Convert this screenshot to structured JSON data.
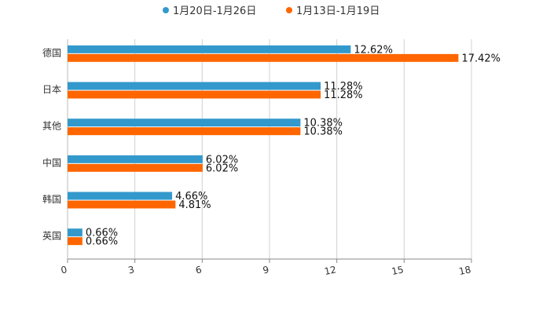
{
  "chart_data": {
    "type": "bar",
    "orientation": "horizontal",
    "categories": [
      "德国",
      "日本",
      "其他",
      "中国",
      "韩国",
      "英国"
    ],
    "series": [
      {
        "name": "1月20日-1月26日",
        "color": "#3399cc",
        "values": [
          12.62,
          11.28,
          10.38,
          6.02,
          4.66,
          0.66
        ],
        "labels": [
          "12.62%",
          "11.28%",
          "10.38%",
          "6.02%",
          "4.66%",
          "0.66%"
        ]
      },
      {
        "name": "1月13日-1月19日",
        "color": "#ff6600",
        "values": [
          17.42,
          11.28,
          10.38,
          6.02,
          4.81,
          0.66
        ],
        "labels": [
          "17.42%",
          "11.28%",
          "10.38%",
          "6.02%",
          "4.81%",
          "0.66%"
        ]
      }
    ],
    "xlim": [
      0,
      18
    ],
    "xticks": [
      "0",
      "3",
      "6",
      "9",
      "12",
      "15",
      "18"
    ],
    "grid": true,
    "legend_position": "top-center",
    "title": "",
    "xlabel": "",
    "ylabel": ""
  }
}
